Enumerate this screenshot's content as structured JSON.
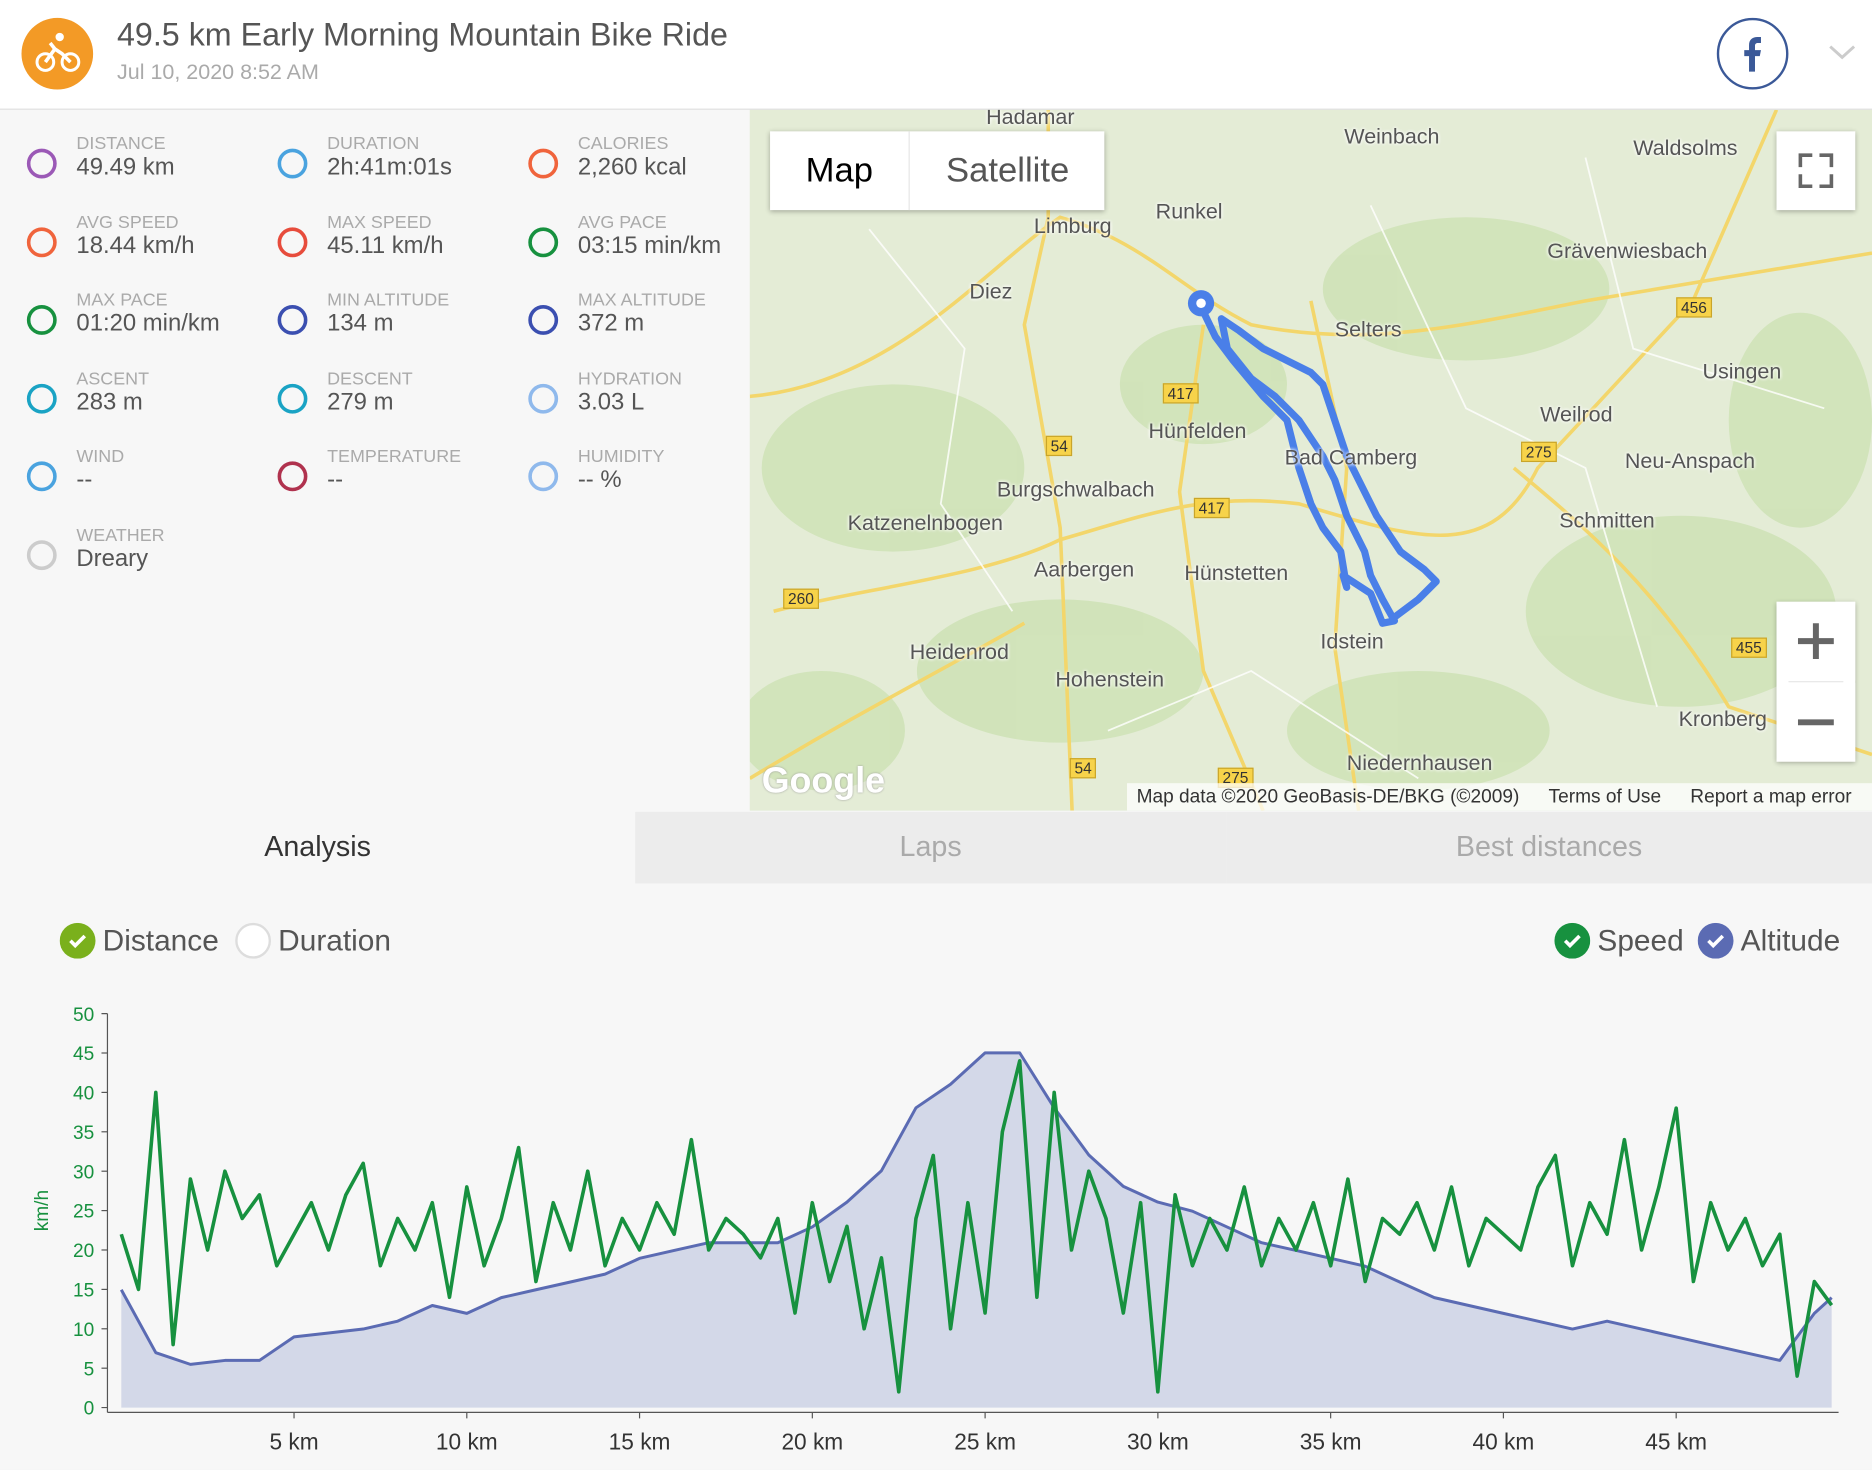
{
  "header": {
    "title": "49.5 km Early Morning Mountain Bike Ride",
    "date": "Jul 10, 2020 8:52 AM"
  },
  "stats": [
    {
      "label": "Distance",
      "value": "49.49 km"
    },
    {
      "label": "Duration",
      "value": "2h:41m:01s"
    },
    {
      "label": "Calories",
      "value": "2,260 kcal"
    },
    {
      "label": "Avg Speed",
      "value": "18.44 km/h"
    },
    {
      "label": "Max Speed",
      "value": "45.11 km/h"
    },
    {
      "label": "Avg Pace",
      "value": "03:15 min/km"
    },
    {
      "label": "Max Pace",
      "value": "01:20 min/km"
    },
    {
      "label": "Min Altitude",
      "value": "134 m"
    },
    {
      "label": "Max Altitude",
      "value": "372 m"
    },
    {
      "label": "Ascent",
      "value": "283 m"
    },
    {
      "label": "Descent",
      "value": "279 m"
    },
    {
      "label": "Hydration",
      "value": "3.03 L"
    },
    {
      "label": "Wind",
      "value": "--"
    },
    {
      "label": "Temperature",
      "value": "--"
    },
    {
      "label": "Humidity",
      "value": "-- %"
    },
    {
      "label": "Weather",
      "value": "Dreary"
    }
  ],
  "map": {
    "buttons": [
      "Map",
      "Satellite"
    ],
    "towns": [
      "Hadamar",
      "Weinbach",
      "Waldsolms",
      "Runkel",
      "Limburg",
      "Diez",
      "Selters",
      "Grävenwiesbach",
      "Usingen",
      "Hünfelden",
      "Weilrod",
      "Bad Camberg",
      "Neu-Anspach",
      "Burgschwalbach",
      "Katzenelnbogen",
      "Schmitten",
      "Aarbergen",
      "Hünstetten",
      "Heidenrod",
      "Idstein",
      "Hohenstein",
      "Kronberg",
      "Niedernhausen"
    ],
    "roads": [
      "417",
      "456",
      "54",
      "417",
      "275",
      "260",
      "455",
      "54",
      "275"
    ],
    "logo": "Google",
    "attribution": "Map data ©2020 GeoBasis-DE/BKG (©2009)",
    "terms": "Terms of Use",
    "report": "Report a map error"
  },
  "tabs": [
    "Analysis",
    "Laps",
    "Best distances"
  ],
  "chart_data": {
    "type": "line",
    "y_label": "km/h",
    "x_modes": [
      {
        "name": "Distance",
        "checked": true
      },
      {
        "name": "Duration",
        "checked": false
      }
    ],
    "xlim": [
      -0.4,
      49.7
    ],
    "xticks": [
      {
        "value": 5,
        "label": "5 km"
      },
      {
        "value": 10,
        "label": "10 km"
      },
      {
        "value": 15,
        "label": "15 km"
      },
      {
        "value": 20,
        "label": "20 km"
      },
      {
        "value": 25,
        "label": "25 km"
      },
      {
        "value": 30,
        "label": "30 km"
      },
      {
        "value": 35,
        "label": "35 km"
      },
      {
        "value": 40,
        "label": "40 km"
      },
      {
        "value": 45,
        "label": "45 km"
      }
    ],
    "ylim": [
      0,
      50
    ],
    "yticks": [
      0,
      5,
      10,
      15,
      20,
      25,
      30,
      35,
      40,
      45,
      50
    ],
    "y2lim": [
      101,
      402
    ],
    "series": [
      {
        "name": "Speed",
        "color": "#17913f",
        "x": [
          0,
          0.5,
          1,
          1.5,
          2,
          2.5,
          3,
          3.5,
          4,
          4.5,
          5,
          5.5,
          6,
          6.5,
          7,
          7.5,
          8,
          8.5,
          9,
          9.5,
          10,
          10.5,
          11,
          11.5,
          12,
          12.5,
          13,
          13.5,
          14,
          14.5,
          15,
          15.5,
          16,
          16.5,
          17,
          17.5,
          18,
          18.5,
          19,
          19.5,
          20,
          20.5,
          21,
          21.5,
          22,
          22.5,
          23,
          23.5,
          24,
          24.5,
          25,
          25.5,
          26,
          26.5,
          27,
          27.5,
          28,
          28.5,
          29,
          29.5,
          30,
          30.5,
          31,
          31.5,
          32,
          32.5,
          33,
          33.5,
          34,
          34.5,
          35,
          35.5,
          36,
          36.5,
          37,
          37.5,
          38,
          38.5,
          39,
          39.5,
          40,
          40.5,
          41,
          41.5,
          42,
          42.5,
          43,
          43.5,
          44,
          44.5,
          45,
          45.5,
          46,
          46.5,
          47,
          47.5,
          48,
          48.5,
          49,
          49.5
        ],
        "values": [
          22,
          15,
          40,
          8,
          29,
          20,
          30,
          24,
          27,
          18,
          22,
          26,
          20,
          27,
          31,
          18,
          24,
          20,
          26,
          14,
          28,
          18,
          24,
          33,
          16,
          26,
          20,
          30,
          18,
          24,
          20,
          26,
          22,
          34,
          20,
          24,
          22,
          19,
          24,
          12,
          26,
          16,
          23,
          10,
          19,
          2,
          24,
          32,
          10,
          26,
          12,
          35,
          44,
          14,
          40,
          20,
          30,
          24,
          12,
          26,
          2,
          27,
          18,
          24,
          20,
          28,
          18,
          24,
          20,
          26,
          18,
          29,
          16,
          24,
          22,
          26,
          20,
          28,
          18,
          24,
          22,
          20,
          28,
          32,
          18,
          26,
          22,
          34,
          20,
          28,
          38,
          16,
          26,
          20,
          24,
          18,
          22,
          4,
          16,
          13
        ]
      },
      {
        "name": "Altitude",
        "color": "#5b6bb3",
        "fill": "#d3d8e8",
        "axis": "y2",
        "x": [
          0,
          1,
          2,
          3,
          4,
          5,
          6,
          7,
          8,
          9,
          10,
          11,
          12,
          13,
          14,
          15,
          16,
          17,
          18,
          19,
          20,
          21,
          22,
          23,
          24,
          25,
          26,
          27,
          28,
          29,
          30,
          31,
          32,
          33,
          34,
          35,
          36,
          37,
          38,
          39,
          40,
          41,
          42,
          43,
          44,
          45,
          46,
          47,
          48,
          49,
          49.5
        ],
        "values": [
          191,
          143,
          134,
          137,
          137,
          155,
          158,
          161,
          167,
          179,
          173,
          185,
          191,
          197,
          203,
          215,
          221,
          227,
          227,
          227,
          239,
          258,
          282,
          330,
          348,
          372,
          372,
          330,
          294,
          270,
          258,
          251,
          239,
          227,
          221,
          215,
          209,
          197,
          185,
          179,
          173,
          167,
          161,
          167,
          161,
          155,
          149,
          143,
          137,
          173,
          185
        ]
      }
    ]
  }
}
